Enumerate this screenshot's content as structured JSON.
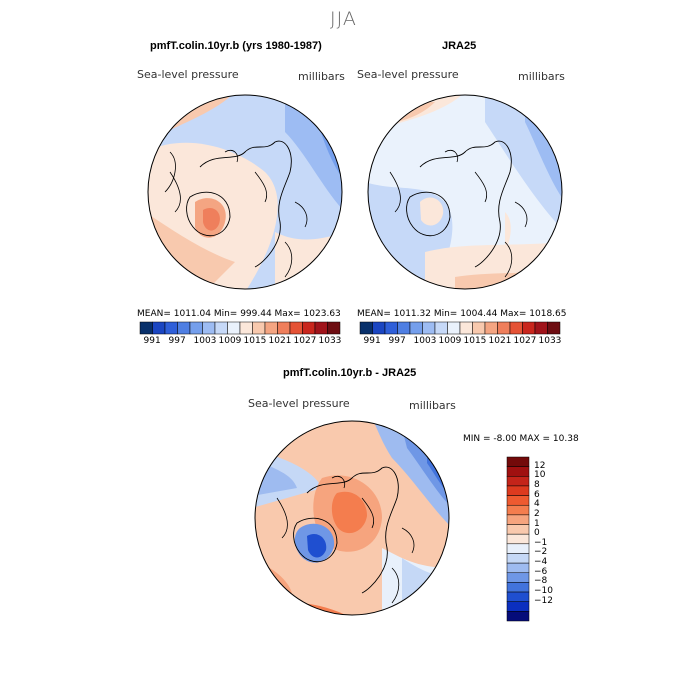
{
  "header": {
    "title": "JJA"
  },
  "panels": [
    {
      "title": "pmfT.colin.10yr.b (yrs 1980-1987)",
      "variable": "Sea-level pressure",
      "units": "millibars",
      "stats": "MEAN= 1011.04   Min= 999.44   Max= 1023.63"
    },
    {
      "title": "JRA25",
      "variable": "Sea-level pressure",
      "units": "millibars",
      "stats": "MEAN= 1011.32   Min= 1004.44   Max= 1018.65"
    },
    {
      "title": "pmfT.colin.10yr.b - JRA25",
      "variable": "Sea-level pressure",
      "units": "millibars",
      "stats": "MIN =   -8.00 MAX =   10.38"
    }
  ],
  "colorbar_abs": {
    "tick_labels": [
      "991",
      "997",
      "1003",
      "1009",
      "1015",
      "1021",
      "1027",
      "1033"
    ],
    "colors": [
      "#08306b",
      "#1b46c2",
      "#2f5fd9",
      "#4f7fe3",
      "#759fec",
      "#9dbcf3",
      "#c6d9f8",
      "#eaf2fc",
      "#fbe7da",
      "#f8c9ae",
      "#f4a582",
      "#ef7f5c",
      "#e55336",
      "#c9261d",
      "#a0131a",
      "#6e0d12"
    ]
  },
  "colorbar_diff": {
    "tick_labels": [
      "12",
      "10",
      "8",
      "6",
      "4",
      "2",
      "1",
      "0",
      "−1",
      "−2",
      "−4",
      "−6",
      "−8",
      "−10",
      "−12"
    ],
    "colors": [
      "#730a0a",
      "#a01010",
      "#c4241a",
      "#dd3a1f",
      "#ee5a30",
      "#f47d4e",
      "#f6a47e",
      "#f9c9ad",
      "#fbe7da",
      "#e8f0fb",
      "#c5d8f6",
      "#9ebbf0",
      "#6f97e6",
      "#4273dc",
      "#1f4fd0",
      "#0b2fbf",
      "#050c7a"
    ]
  }
}
